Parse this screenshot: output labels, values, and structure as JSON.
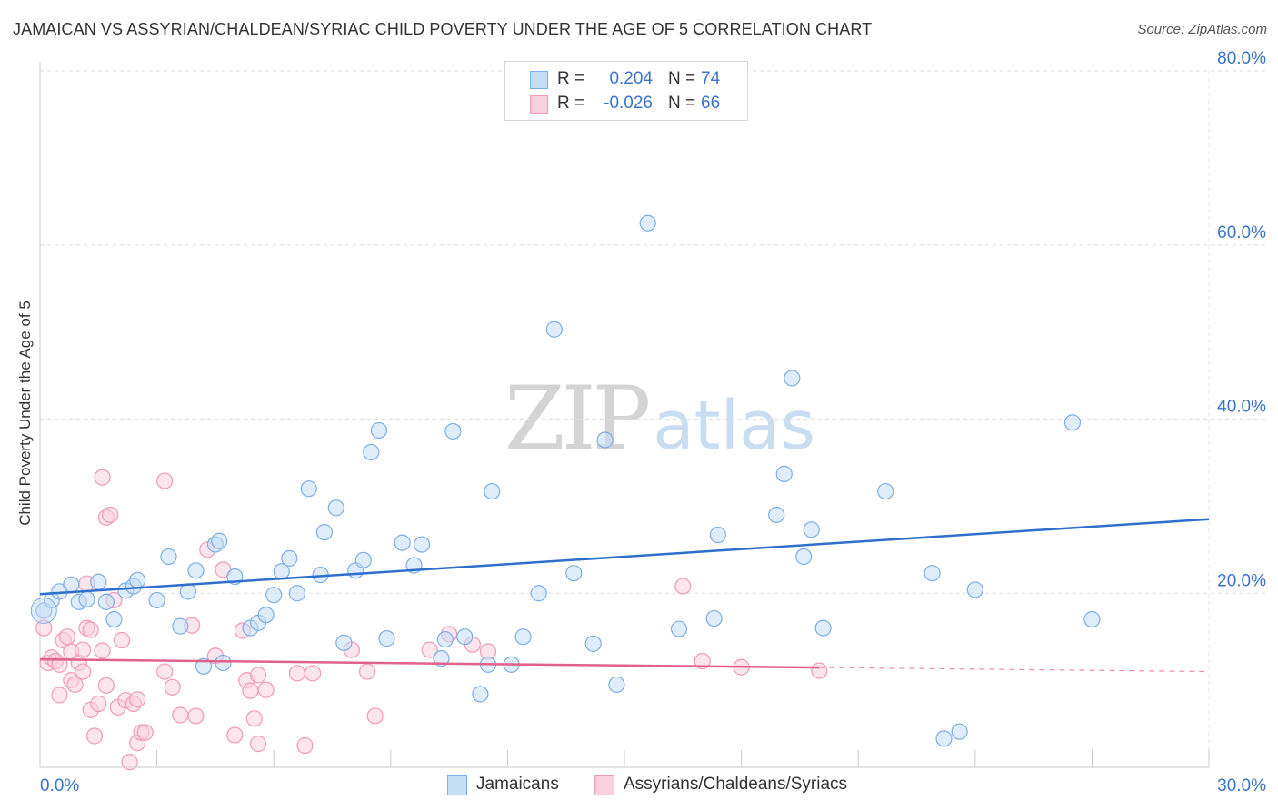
{
  "title": "JAMAICAN VS ASSYRIAN/CHALDEAN/SYRIAC CHILD POVERTY UNDER THE AGE OF 5 CORRELATION CHART",
  "source": "Source: ZipAtlas.com",
  "watermark": {
    "zip": "ZIP",
    "atlas": "atlas"
  },
  "colors": {
    "blue": "#7eaee6",
    "blue_fill": "#c5dcf5",
    "blue_line": "#2f6fcc",
    "blue_text": "#3a74c9",
    "pink": "#ef9ab6",
    "pink_fill": "#fbd0de",
    "pink_line": "#e0608e"
  },
  "legend_top": {
    "rows": [
      {
        "r_label": "R =",
        "r_value": "0.204",
        "n_label": "N =",
        "n_value": "74"
      },
      {
        "r_label": "R =",
        "r_value": "-0.026",
        "n_label": "N =",
        "n_value": "66"
      }
    ]
  },
  "legend_bottom": [
    "Jamaicans",
    "Assyrians/Chaldeans/Syriacs"
  ],
  "chart_data": {
    "type": "scatter",
    "title": "JAMAICAN VS ASSYRIAN/CHALDEAN/SYRIAC CHILD POVERTY UNDER THE AGE OF 5 CORRELATION CHART",
    "xlabel": "",
    "ylabel": "Child Poverty Under the Age of 5",
    "xlim": [
      0,
      30
    ],
    "ylim": [
      0,
      80
    ],
    "x_tick_labels": [
      {
        "value": 0,
        "label": "0.0%"
      },
      {
        "value": 30,
        "label": "30.0%"
      }
    ],
    "y_tick_labels": [
      {
        "value": 20,
        "label": "20.0%"
      },
      {
        "value": 40,
        "label": "40.0%"
      },
      {
        "value": 60,
        "label": "60.0%"
      },
      {
        "value": 80,
        "label": "80.0%"
      }
    ],
    "grid": true,
    "legend_position": "bottom",
    "series": [
      {
        "name": "Jamaicans",
        "r": 0.204,
        "n": 74,
        "trend": {
          "x": [
            0,
            30
          ],
          "y": [
            19.9,
            28.5
          ],
          "dashed_from": null
        },
        "points": [
          [
            0.1,
            18.0
          ],
          [
            0.3,
            19.2
          ],
          [
            0.5,
            20.2
          ],
          [
            0.8,
            21.0
          ],
          [
            1.0,
            19.0
          ],
          [
            1.2,
            19.3
          ],
          [
            1.5,
            21.3
          ],
          [
            1.7,
            19.0
          ],
          [
            1.9,
            17.0
          ],
          [
            2.2,
            20.3
          ],
          [
            2.4,
            20.8
          ],
          [
            2.5,
            21.5
          ],
          [
            3.0,
            19.2
          ],
          [
            3.3,
            24.2
          ],
          [
            3.6,
            16.2
          ],
          [
            3.8,
            20.2
          ],
          [
            4.0,
            22.6
          ],
          [
            4.2,
            11.6
          ],
          [
            4.5,
            25.6
          ],
          [
            4.6,
            26.0
          ],
          [
            4.7,
            12.0
          ],
          [
            5.0,
            21.9
          ],
          [
            5.4,
            16.0
          ],
          [
            5.6,
            16.6
          ],
          [
            5.8,
            17.5
          ],
          [
            6.0,
            19.8
          ],
          [
            6.2,
            22.5
          ],
          [
            6.4,
            24.0
          ],
          [
            6.6,
            20.0
          ],
          [
            6.9,
            32.0
          ],
          [
            7.2,
            22.1
          ],
          [
            7.3,
            27.0
          ],
          [
            7.6,
            29.8
          ],
          [
            7.8,
            14.3
          ],
          [
            8.1,
            22.6
          ],
          [
            8.3,
            23.8
          ],
          [
            8.5,
            36.2
          ],
          [
            8.7,
            38.7
          ],
          [
            8.9,
            14.8
          ],
          [
            9.3,
            25.8
          ],
          [
            9.6,
            23.2
          ],
          [
            9.8,
            25.6
          ],
          [
            10.3,
            12.5
          ],
          [
            10.4,
            14.7
          ],
          [
            10.6,
            38.6
          ],
          [
            10.9,
            15.0
          ],
          [
            11.3,
            8.4
          ],
          [
            11.5,
            11.8
          ],
          [
            11.6,
            31.7
          ],
          [
            12.1,
            11.8
          ],
          [
            12.4,
            15.0
          ],
          [
            12.8,
            20.0
          ],
          [
            13.2,
            50.3
          ],
          [
            13.7,
            22.3
          ],
          [
            14.2,
            14.2
          ],
          [
            14.5,
            37.6
          ],
          [
            14.8,
            9.5
          ],
          [
            15.6,
            62.5
          ],
          [
            16.4,
            15.9
          ],
          [
            17.3,
            17.1
          ],
          [
            17.4,
            26.7
          ],
          [
            18.9,
            29.0
          ],
          [
            19.1,
            33.7
          ],
          [
            19.3,
            44.7
          ],
          [
            19.6,
            24.2
          ],
          [
            19.8,
            27.3
          ],
          [
            20.1,
            16.0
          ],
          [
            21.7,
            31.7
          ],
          [
            22.9,
            22.3
          ],
          [
            23.2,
            3.3
          ],
          [
            23.6,
            4.1
          ],
          [
            24.0,
            20.4
          ],
          [
            26.5,
            39.6
          ],
          [
            27.0,
            17.0
          ]
        ]
      },
      {
        "name": "Assyrians/Chaldeans/Syriacs",
        "r": -0.026,
        "n": 66,
        "trend": {
          "x": [
            0,
            30
          ],
          "y": [
            12.4,
            11.0
          ],
          "dashed_from": 20.0
        },
        "points": [
          [
            0.1,
            16.0
          ],
          [
            0.2,
            12.0
          ],
          [
            0.3,
            12.6
          ],
          [
            0.4,
            12.2
          ],
          [
            0.5,
            8.3
          ],
          [
            0.5,
            11.8
          ],
          [
            0.6,
            14.6
          ],
          [
            0.7,
            15.0
          ],
          [
            0.8,
            10.0
          ],
          [
            0.8,
            13.3
          ],
          [
            0.9,
            9.5
          ],
          [
            1.0,
            12.0
          ],
          [
            1.1,
            13.5
          ],
          [
            1.1,
            11.0
          ],
          [
            1.2,
            21.1
          ],
          [
            1.2,
            16.0
          ],
          [
            1.3,
            15.8
          ],
          [
            1.3,
            6.6
          ],
          [
            1.4,
            3.6
          ],
          [
            1.5,
            7.3
          ],
          [
            1.6,
            13.4
          ],
          [
            1.6,
            33.3
          ],
          [
            1.7,
            9.4
          ],
          [
            1.7,
            28.7
          ],
          [
            1.8,
            29.0
          ],
          [
            1.9,
            19.2
          ],
          [
            2.0,
            6.9
          ],
          [
            2.1,
            14.6
          ],
          [
            2.2,
            7.7
          ],
          [
            2.3,
            0.6
          ],
          [
            2.4,
            7.3
          ],
          [
            2.5,
            7.8
          ],
          [
            2.5,
            2.8
          ],
          [
            2.6,
            4.0
          ],
          [
            2.7,
            4.0
          ],
          [
            3.2,
            32.9
          ],
          [
            3.2,
            11.0
          ],
          [
            3.4,
            9.2
          ],
          [
            3.6,
            6.0
          ],
          [
            3.9,
            16.3
          ],
          [
            4.0,
            5.9
          ],
          [
            4.3,
            25.0
          ],
          [
            4.5,
            12.8
          ],
          [
            4.7,
            22.7
          ],
          [
            5.0,
            3.7
          ],
          [
            5.2,
            15.7
          ],
          [
            5.3,
            10.0
          ],
          [
            5.4,
            8.8
          ],
          [
            5.5,
            5.6
          ],
          [
            5.6,
            2.7
          ],
          [
            5.6,
            10.6
          ],
          [
            5.8,
            8.9
          ],
          [
            6.6,
            10.8
          ],
          [
            6.8,
            2.5
          ],
          [
            7.0,
            10.8
          ],
          [
            8.0,
            13.5
          ],
          [
            8.4,
            11.0
          ],
          [
            8.6,
            5.9
          ],
          [
            10.0,
            13.5
          ],
          [
            10.5,
            15.3
          ],
          [
            11.1,
            14.1
          ],
          [
            11.5,
            13.3
          ],
          [
            16.5,
            20.8
          ],
          [
            17.0,
            12.2
          ],
          [
            18.0,
            11.5
          ],
          [
            20.0,
            11.1
          ]
        ]
      }
    ]
  }
}
